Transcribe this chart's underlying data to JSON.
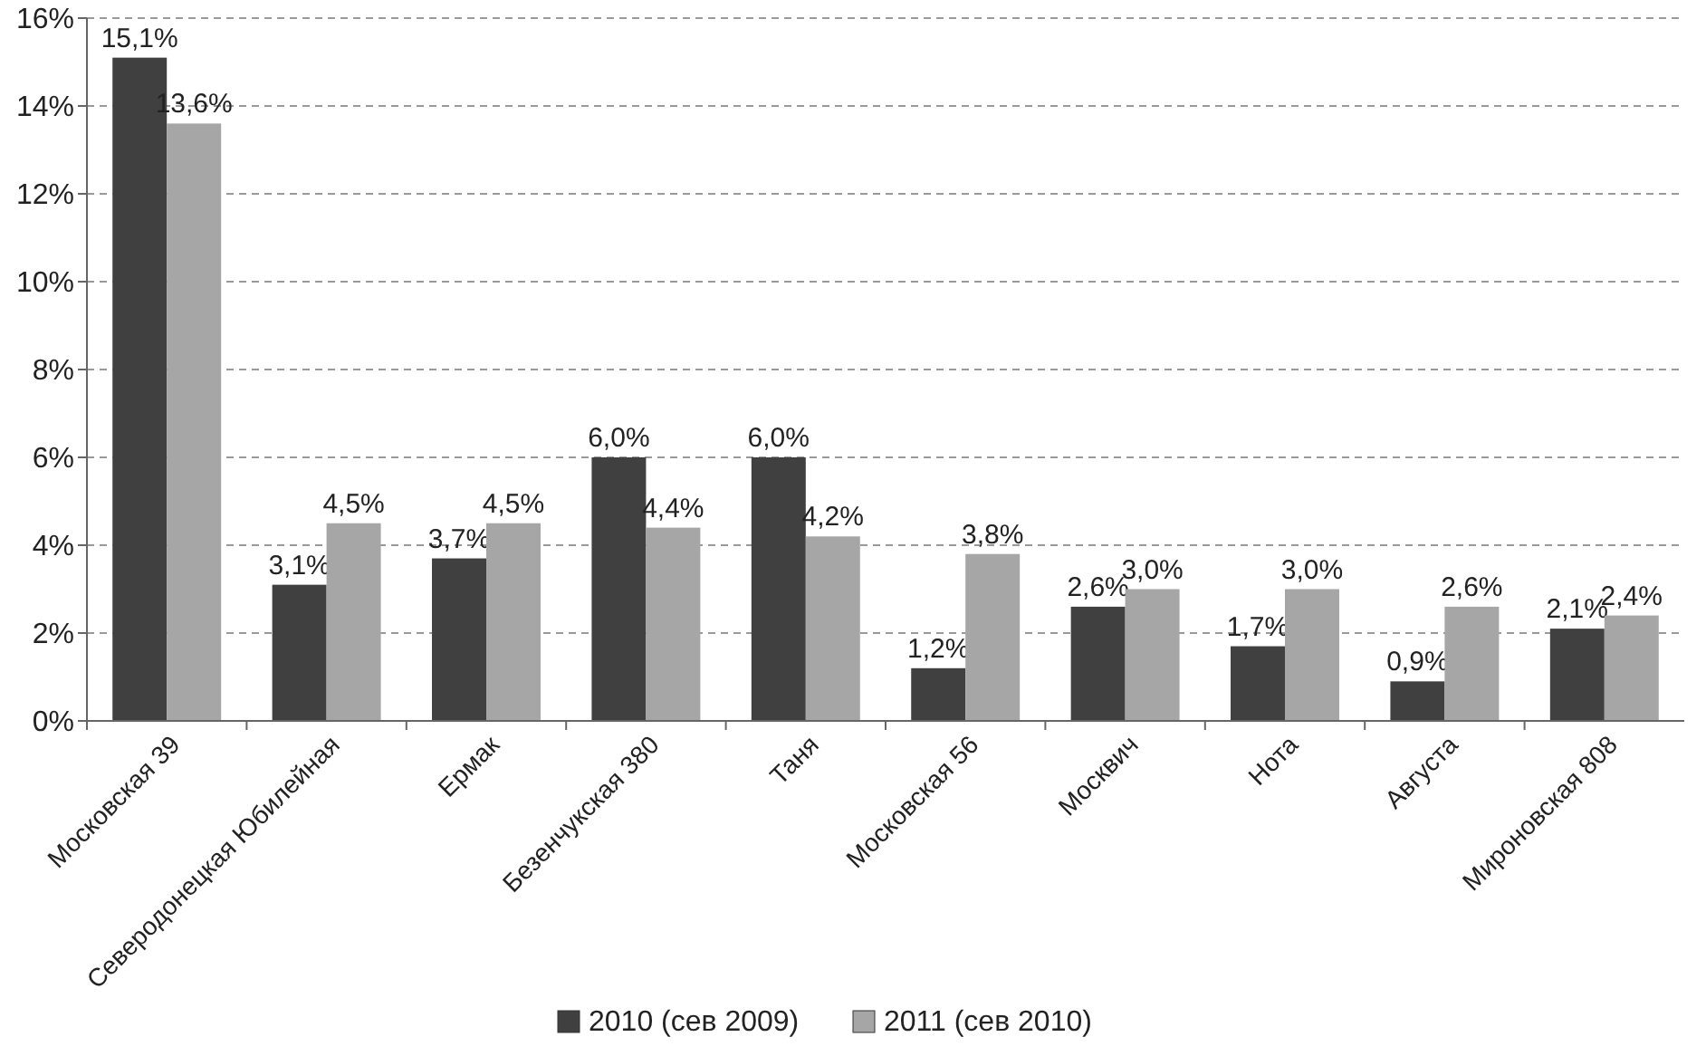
{
  "chart_data": {
    "type": "bar",
    "categories": [
      "Московская 39",
      "Северодонецкая Юбилейная",
      "Ермак",
      "Безенчукская 380",
      "Таня",
      "Московская 56",
      "Москвич",
      "Нота",
      "Августа",
      "Мироновская 808"
    ],
    "series": [
      {
        "name": "2010 (сев 2009)",
        "color": "#404040",
        "values": [
          15.1,
          3.1,
          3.7,
          6.0,
          6.0,
          1.2,
          2.6,
          1.7,
          0.9,
          2.1
        ],
        "value_labels": [
          "15,1%",
          "3,1%",
          "3,7%",
          "6,0%",
          "6,0%",
          "1,2%",
          "2,6%",
          "1,7%",
          "0,9%",
          "2,1%"
        ]
      },
      {
        "name": "2011 (сев 2010)",
        "color": "#a6a6a6",
        "values": [
          13.6,
          4.5,
          4.5,
          4.4,
          4.2,
          3.8,
          3.0,
          3.0,
          2.6,
          2.4
        ],
        "value_labels": [
          "13,6%",
          "4,5%",
          "4,5%",
          "4,4%",
          "4,2%",
          "3,8%",
          "3,0%",
          "3,0%",
          "2,6%",
          "2,4%"
        ]
      }
    ],
    "ylim": [
      0,
      16
    ],
    "yticks": [
      {
        "value": 0,
        "label": "0%"
      },
      {
        "value": 2,
        "label": "2%"
      },
      {
        "value": 4,
        "label": "4%"
      },
      {
        "value": 6,
        "label": "6%"
      },
      {
        "value": 8,
        "label": "8%"
      },
      {
        "value": 10,
        "label": "10%"
      },
      {
        "value": 12,
        "label": "12%"
      },
      {
        "value": 14,
        "label": "14%"
      },
      {
        "value": 16,
        "label": "16%"
      }
    ],
    "grid": "y",
    "legend": "bottom"
  }
}
